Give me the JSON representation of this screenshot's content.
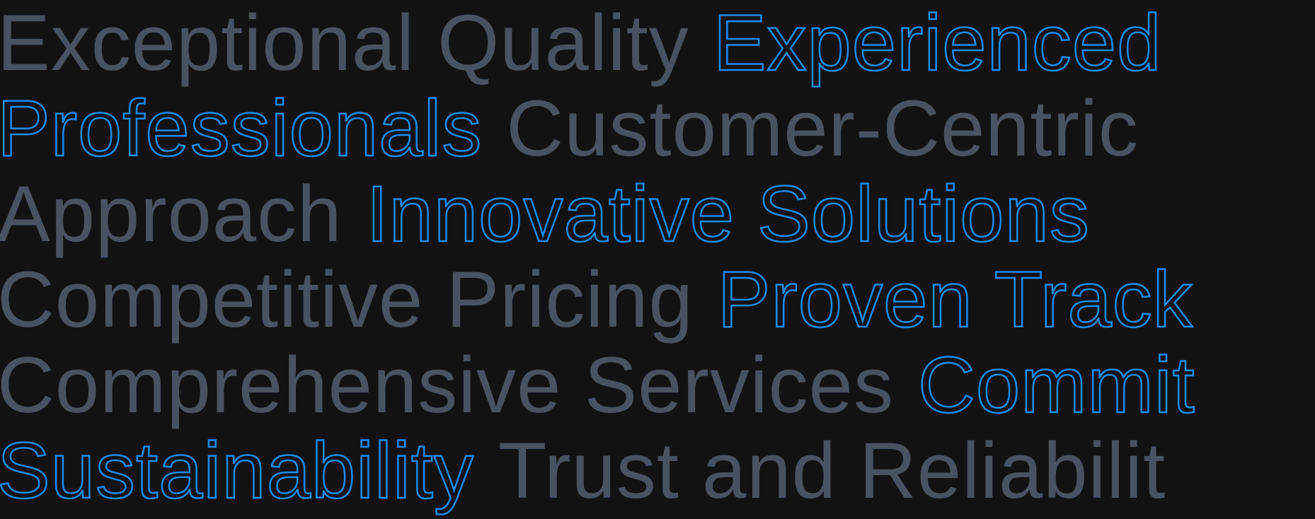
{
  "colors": {
    "filled": "#4a5261",
    "outline": "#1a8cf0",
    "background": "#121212"
  },
  "lines": [
    [
      {
        "text": "Exceptional Quality",
        "style": "filled"
      },
      {
        "text": "Experienced",
        "style": "outline"
      }
    ],
    [
      {
        "text": "Professionals",
        "style": "outline"
      },
      {
        "text": "Customer-Centric",
        "style": "filled"
      }
    ],
    [
      {
        "text": "Approach",
        "style": "filled"
      },
      {
        "text": "Innovative Solutions",
        "style": "outline"
      }
    ],
    [
      {
        "text": "Competitive Pricing",
        "style": "filled"
      },
      {
        "text": "Proven Track",
        "style": "outline"
      }
    ],
    [
      {
        "text": "Comprehensive Services",
        "style": "filled"
      },
      {
        "text": "Commit",
        "style": "outline"
      }
    ],
    [
      {
        "text": "Sustainability",
        "style": "outline"
      },
      {
        "text": "Trust and Reliabilit",
        "style": "filled"
      }
    ]
  ]
}
